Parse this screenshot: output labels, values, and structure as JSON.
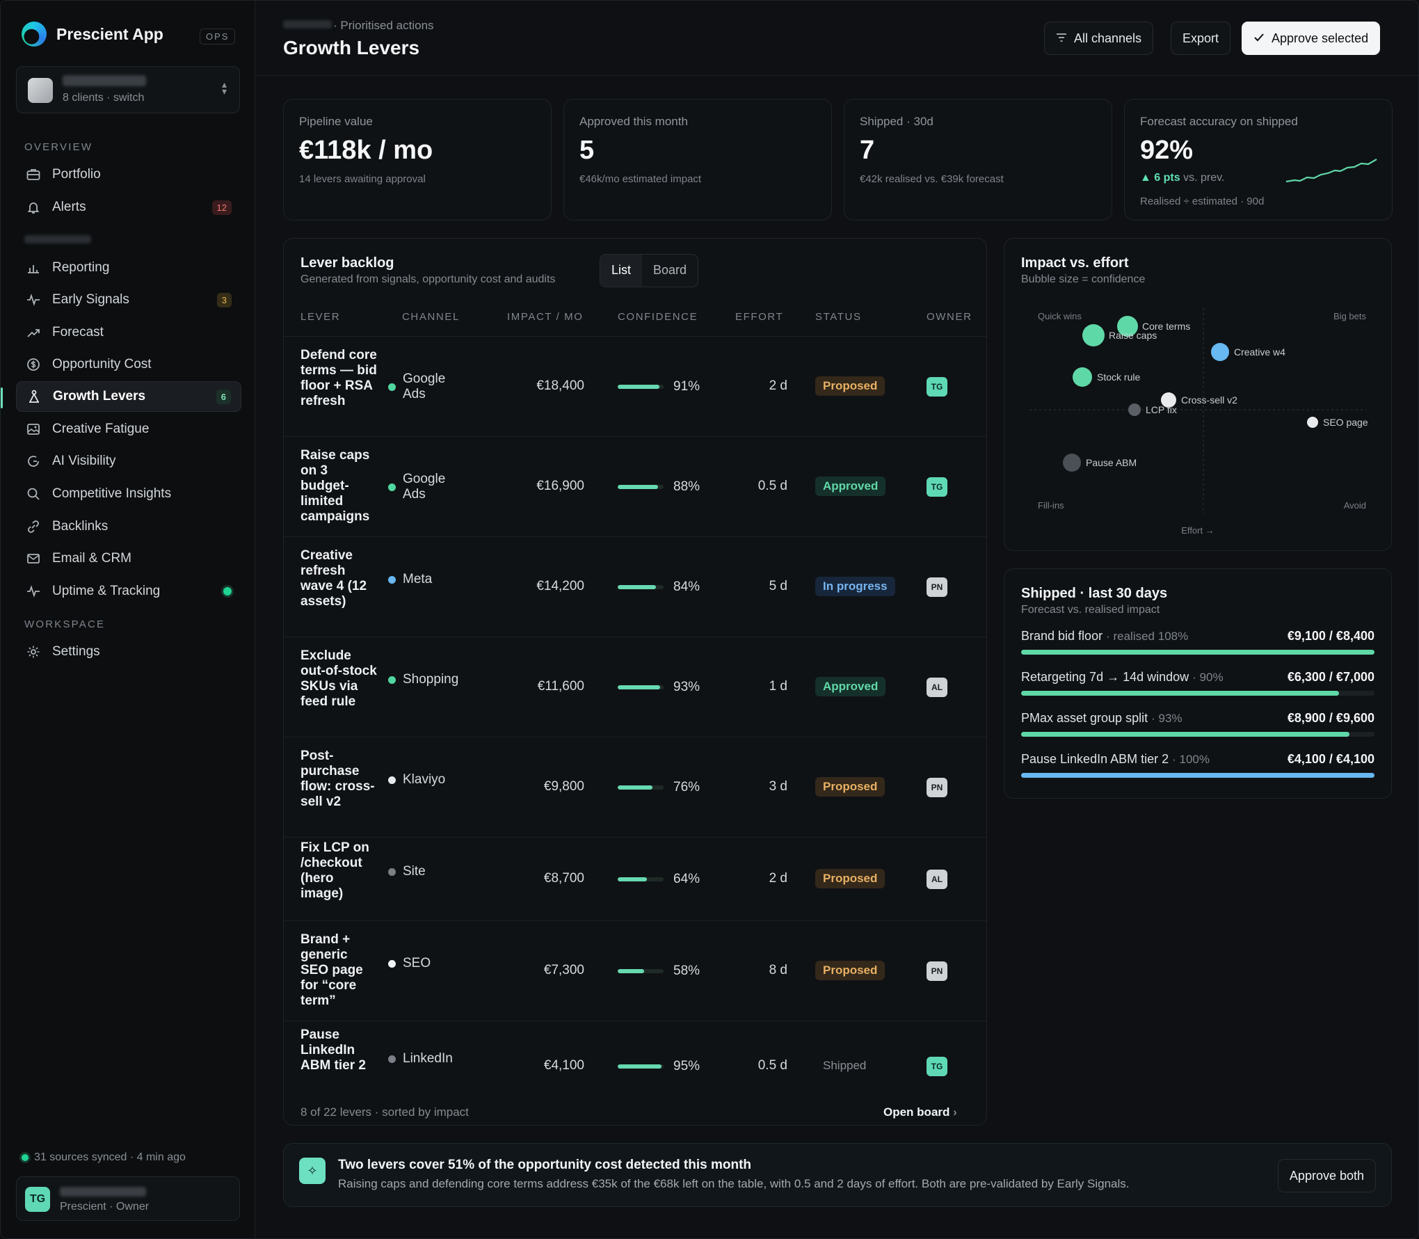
{
  "app": {
    "name": "Prescient App",
    "env_badge": "OPS"
  },
  "client_switch": {
    "sub": "8 clients · switch"
  },
  "sidebar": {
    "overview_label": "OVERVIEW",
    "workspace_label": "WORKSPACE",
    "items": [
      {
        "label": "Portfolio"
      },
      {
        "label": "Alerts",
        "count": "12"
      },
      {
        "label": "Reporting"
      },
      {
        "label": "Early Signals",
        "count": "3"
      },
      {
        "label": "Forecast"
      },
      {
        "label": "Opportunity Cost"
      },
      {
        "label": "Growth Levers",
        "count": "6"
      },
      {
        "label": "Creative Fatigue"
      },
      {
        "label": "AI Visibility"
      },
      {
        "label": "Competitive Insights"
      },
      {
        "label": "Backlinks"
      },
      {
        "label": "Email & CRM"
      },
      {
        "label": "Uptime & Tracking"
      },
      {
        "label": "Settings"
      }
    ],
    "sync_status": "31 sources synced · 4 min ago",
    "user": {
      "initials": "TG",
      "role": "Prescient · Owner"
    }
  },
  "header": {
    "breadcrumb": "· Prioritised actions",
    "title": "Growth Levers",
    "filter_label": "All channels",
    "export_label": "Export",
    "approve_label": "Approve selected"
  },
  "kpis": [
    {
      "label": "Pipeline value",
      "value": "€118k / mo",
      "sub": "14 levers awaiting approval"
    },
    {
      "label": "Approved this month",
      "value": "5",
      "sub": "€46k/mo estimated impact"
    },
    {
      "label": "Shipped · 30d",
      "value": "7",
      "sub": "€42k realised vs. €39k forecast"
    },
    {
      "label": "Forecast accuracy on shipped",
      "value": "92%",
      "delta": "▲ 6 pts",
      "delta_suffix": "vs. prev.",
      "sub": "Realised ÷ estimated · 90d"
    }
  ],
  "backlog": {
    "title": "Lever backlog",
    "subtitle": "Generated from signals, opportunity cost and audits",
    "view_list": "List",
    "view_board": "Board",
    "columns": [
      "LEVER",
      "CHANNEL",
      "IMPACT / MO",
      "CONFIDENCE",
      "EFFORT",
      "STATUS",
      "OWNER"
    ],
    "rows": [
      {
        "lever": "Defend core terms — bid floor + RSA refresh",
        "channel": "Google Ads",
        "channel_color": "#4fd7a0",
        "impact": "€18,400",
        "confidence": 91,
        "confidence_label": "91%",
        "effort": "2 d",
        "status": "Proposed",
        "owner": "TG"
      },
      {
        "lever": "Raise caps on 3 budget-limited campaigns",
        "channel": "Google Ads",
        "channel_color": "#4fd7a0",
        "impact": "€16,900",
        "confidence": 88,
        "confidence_label": "88%",
        "effort": "0.5 d",
        "status": "Approved",
        "owner": "TG"
      },
      {
        "lever": "Creative refresh wave 4 (12 assets)",
        "channel": "Meta",
        "channel_color": "#68b8f2",
        "impact": "€14,200",
        "confidence": 84,
        "confidence_label": "84%",
        "effort": "5 d",
        "status": "In progress",
        "owner": "PN"
      },
      {
        "lever": "Exclude out-of-stock SKUs via feed rule",
        "channel": "Shopping",
        "channel_color": "#4fd7a0",
        "impact": "€11,600",
        "confidence": 93,
        "confidence_label": "93%",
        "effort": "1 d",
        "status": "Approved",
        "owner": "AL"
      },
      {
        "lever": "Post-purchase flow: cross-sell v2",
        "channel": "Klaviyo",
        "channel_color": "#e6e8ea",
        "impact": "€9,800",
        "confidence": 76,
        "confidence_label": "76%",
        "effort": "3 d",
        "status": "Proposed",
        "owner": "PN"
      },
      {
        "lever": "Fix LCP on /checkout (hero image)",
        "channel": "Site",
        "channel_color": "#7a8086",
        "impact": "€8,700",
        "confidence": 64,
        "confidence_label": "64%",
        "effort": "2 d",
        "status": "Proposed",
        "owner": "AL"
      },
      {
        "lever": "Brand + generic SEO page for “core term”",
        "channel": "SEO",
        "channel_color": "#f2f3f4",
        "impact": "€7,300",
        "confidence": 58,
        "confidence_label": "58%",
        "effort": "8 d",
        "status": "Proposed",
        "owner": "PN"
      },
      {
        "lever": "Pause LinkedIn ABM tier 2",
        "channel": "LinkedIn",
        "channel_color": "#7a8086",
        "impact": "€4,100",
        "confidence": 95,
        "confidence_label": "95%",
        "effort": "0.5 d",
        "status": "Shipped",
        "owner": "TG"
      }
    ],
    "footer": "8 of 22 levers · sorted by impact",
    "open_board": "Open board"
  },
  "impact_effort": {
    "title": "Impact vs. effort",
    "subtitle": "Bubble size = confidence",
    "quadrants": {
      "top_left": "Quick wins",
      "top_right": "Big bets",
      "bottom_left": "Fill-ins",
      "bottom_right": "Avoid"
    },
    "x_axis": "Effort →",
    "points": [
      {
        "label": "Core terms",
        "color": "#5fd8a8"
      },
      {
        "label": "Raise caps",
        "color": "#5fd8a8"
      },
      {
        "label": "Creative w4",
        "color": "#68b8f2"
      },
      {
        "label": "Stock rule",
        "color": "#5fd8a8"
      },
      {
        "label": "Cross-sell v2",
        "color": "#e8eaec"
      },
      {
        "label": "LCP fix",
        "color": "#5a6066"
      },
      {
        "label": "SEO page",
        "color": "#e8eaec"
      },
      {
        "label": "Pause ABM",
        "color": "#4a5056"
      }
    ]
  },
  "shipped": {
    "title": "Shipped · last 30 days",
    "subtitle": "Forecast vs. realised impact",
    "items": [
      {
        "name": "Brand bid floor",
        "pct": "· realised 108%",
        "value": "€9,100 / €8,400",
        "fill": 1.0,
        "color": "#5fd8a8"
      },
      {
        "name": "Retargeting 7d → 14d window",
        "pct": "· 90%",
        "value": "€6,300 / €7,000",
        "fill": 0.9,
        "color": "#5fd8a8"
      },
      {
        "name": "PMax asset group split",
        "pct": "· 93%",
        "value": "€8,900 / €9,600",
        "fill": 0.93,
        "color": "#5fd8a8"
      },
      {
        "name": "Pause LinkedIn ABM tier 2",
        "pct": "· 100%",
        "value": "€4,100 / €4,100",
        "fill": 1.0,
        "color": "#68b8f2"
      }
    ]
  },
  "callout": {
    "title": "Two levers cover 51% of the opportunity cost detected this month",
    "body": "Raising caps and defending core terms address €35k of the €68k left on the table, with 0.5 and 2 days of effort. Both are pre-validated by Early Signals.",
    "button": "Approve both"
  }
}
